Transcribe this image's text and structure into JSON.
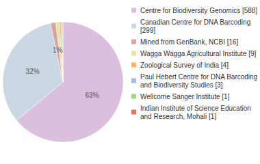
{
  "chart_data": {
    "type": "pie",
    "categories": [
      "Centre for Biodiversity Genomics [588]",
      "Canadian Centre for DNA Barcoding [299]",
      "Mined from GenBank, NCBI [16]",
      "Wagga Wagga Agricultural Institute [9]",
      "Zoological Survey of India [4]",
      "Paul Hebert Centre for DNA Barcoding and Biodiversity Studies [3]",
      "Wellcome Sanger Institute [1]",
      "Indian Institute of Science Education and Research, Mohali [1]"
    ],
    "values": [
      63.4,
      32.4,
      1.4,
      1.0,
      0.4,
      0.3,
      0.1,
      0.1
    ],
    "value_labels": [
      "63%",
      "32%",
      "1%",
      null,
      null,
      null,
      null,
      null
    ],
    "colors": [
      "#dcbedf",
      "#cbd8e4",
      "#d9a3a0",
      "#e2e6a2",
      "#f2b46e",
      "#a3bbd9",
      "#a6d08a",
      "#e07462"
    ],
    "data_labels": true,
    "legend": "right"
  }
}
